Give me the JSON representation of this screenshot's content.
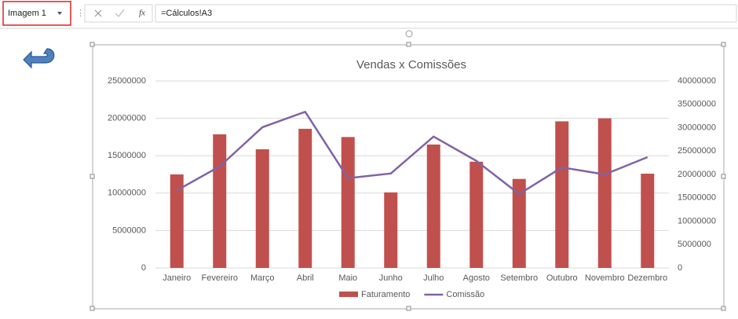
{
  "formula_bar": {
    "name_box": "Imagem 1",
    "function_icon": "fx",
    "formula": "=Cálculos!A3"
  },
  "chart_data": {
    "type": "combo",
    "title": "Vendas x Comissões",
    "categories": [
      "Janeiro",
      "Fevereiro",
      "Março",
      "Abril",
      "Maio",
      "Junho",
      "Julho",
      "Agosto",
      "Setembro",
      "Outubro",
      "Novembro",
      "Dezembro"
    ],
    "series": [
      {
        "name": "Faturamento",
        "type": "bar",
        "color": "#c0504d",
        "values": [
          12500000,
          17860000,
          15860000,
          18600000,
          17500000,
          10100000,
          16500000,
          14200000,
          11900000,
          19600000,
          20000000,
          12600000
        ]
      },
      {
        "name": "Comissão",
        "type": "line",
        "axis": "y2",
        "color": "#8064a2",
        "values": [
          16600000,
          21700000,
          30100000,
          33400000,
          19200000,
          20200000,
          28100000,
          22900000,
          15800000,
          21500000,
          20000000,
          23700000
        ]
      }
    ],
    "ylim": [
      0,
      25000000
    ],
    "yticks": [
      0,
      5000000,
      10000000,
      15000000,
      20000000,
      25000000
    ],
    "y2lim": [
      0,
      40000000
    ],
    "y2ticks": [
      0,
      5000000,
      10000000,
      15000000,
      20000000,
      25000000,
      30000000,
      35000000,
      40000000
    ],
    "grid": true,
    "legend": "bottom"
  }
}
